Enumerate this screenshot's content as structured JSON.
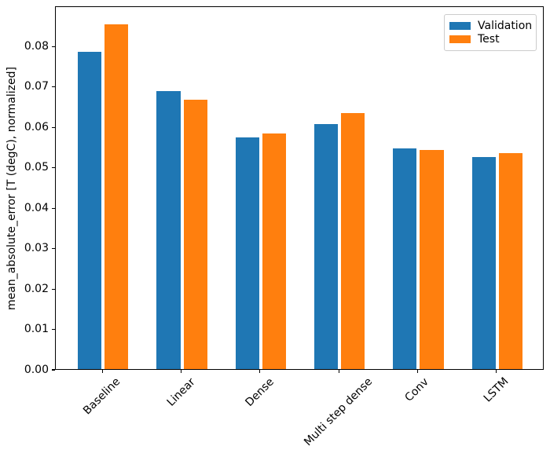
{
  "figure": {
    "background": "#ffffff"
  },
  "chart_data": {
    "type": "bar",
    "title": "",
    "categories": [
      "Baseline",
      "Linear",
      "Dense",
      "Multi step dense",
      "Conv",
      "LSTM"
    ],
    "series": [
      {
        "name": "Validation",
        "color": "#1f77b4",
        "values": [
          0.0785,
          0.0688,
          0.0574,
          0.0607,
          0.0546,
          0.0524
        ]
      },
      {
        "name": "Test",
        "color": "#ff7f0e",
        "values": [
          0.0853,
          0.0666,
          0.0584,
          0.0634,
          0.0543,
          0.0534
        ]
      }
    ],
    "xlabel": "",
    "ylabel": "mean_absolute_error [T (degC), normalized]",
    "ylim": [
      0,
      0.09
    ],
    "xlim": [
      -0.6,
      5.6
    ],
    "yticks": [
      0,
      0.01,
      0.02,
      0.03,
      0.04,
      0.05,
      0.06,
      0.07,
      0.08
    ],
    "ytick_decimals": 2,
    "bar_width": 0.3,
    "bar_offset": 0.17,
    "xtick_rotation": 45,
    "grid": false,
    "legend": {
      "position": "upper right",
      "entries": [
        "Validation",
        "Test"
      ]
    },
    "colors": {
      "spine": "#000000",
      "text": "#000000",
      "legend_border": "#cccccc"
    }
  }
}
